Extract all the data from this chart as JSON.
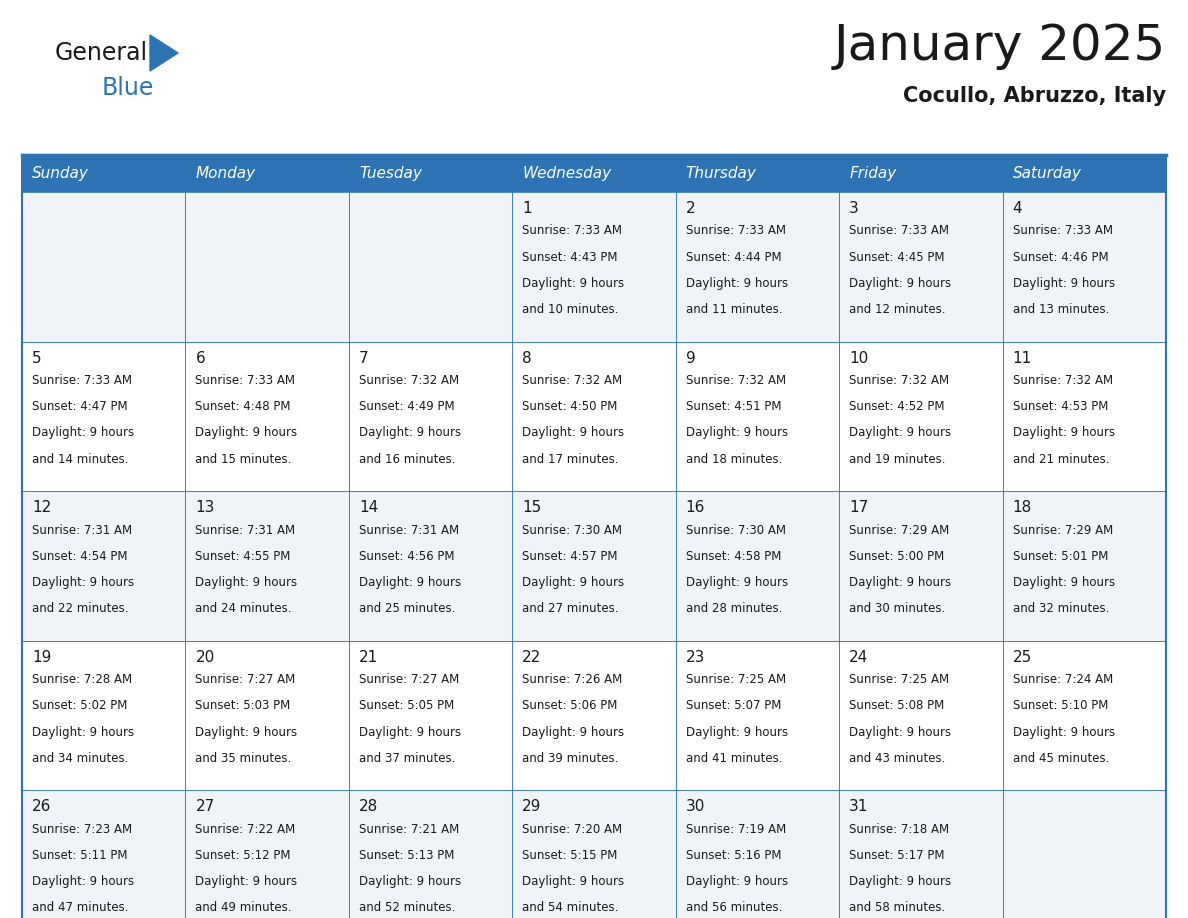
{
  "title": "January 2025",
  "subtitle": "Cocullo, Abruzzo, Italy",
  "header_bg_color": "#2E74B5",
  "header_text_color": "#FFFFFF",
  "cell_bg_color_light": "#F0F4F8",
  "cell_bg_color_white": "#FFFFFF",
  "grid_line_color": "#2E74B5",
  "text_color": "#1a1a1a",
  "day_names": [
    "Sunday",
    "Monday",
    "Tuesday",
    "Wednesday",
    "Thursday",
    "Friday",
    "Saturday"
  ],
  "days": [
    {
      "day": 1,
      "col": 3,
      "row": 0,
      "sunrise": "7:33 AM",
      "sunset": "4:43 PM",
      "daylight_hours": 9,
      "daylight_minutes": 10
    },
    {
      "day": 2,
      "col": 4,
      "row": 0,
      "sunrise": "7:33 AM",
      "sunset": "4:44 PM",
      "daylight_hours": 9,
      "daylight_minutes": 11
    },
    {
      "day": 3,
      "col": 5,
      "row": 0,
      "sunrise": "7:33 AM",
      "sunset": "4:45 PM",
      "daylight_hours": 9,
      "daylight_minutes": 12
    },
    {
      "day": 4,
      "col": 6,
      "row": 0,
      "sunrise": "7:33 AM",
      "sunset": "4:46 PM",
      "daylight_hours": 9,
      "daylight_minutes": 13
    },
    {
      "day": 5,
      "col": 0,
      "row": 1,
      "sunrise": "7:33 AM",
      "sunset": "4:47 PM",
      "daylight_hours": 9,
      "daylight_minutes": 14
    },
    {
      "day": 6,
      "col": 1,
      "row": 1,
      "sunrise": "7:33 AM",
      "sunset": "4:48 PM",
      "daylight_hours": 9,
      "daylight_minutes": 15
    },
    {
      "day": 7,
      "col": 2,
      "row": 1,
      "sunrise": "7:32 AM",
      "sunset": "4:49 PM",
      "daylight_hours": 9,
      "daylight_minutes": 16
    },
    {
      "day": 8,
      "col": 3,
      "row": 1,
      "sunrise": "7:32 AM",
      "sunset": "4:50 PM",
      "daylight_hours": 9,
      "daylight_minutes": 17
    },
    {
      "day": 9,
      "col": 4,
      "row": 1,
      "sunrise": "7:32 AM",
      "sunset": "4:51 PM",
      "daylight_hours": 9,
      "daylight_minutes": 18
    },
    {
      "day": 10,
      "col": 5,
      "row": 1,
      "sunrise": "7:32 AM",
      "sunset": "4:52 PM",
      "daylight_hours": 9,
      "daylight_minutes": 19
    },
    {
      "day": 11,
      "col": 6,
      "row": 1,
      "sunrise": "7:32 AM",
      "sunset": "4:53 PM",
      "daylight_hours": 9,
      "daylight_minutes": 21
    },
    {
      "day": 12,
      "col": 0,
      "row": 2,
      "sunrise": "7:31 AM",
      "sunset": "4:54 PM",
      "daylight_hours": 9,
      "daylight_minutes": 22
    },
    {
      "day": 13,
      "col": 1,
      "row": 2,
      "sunrise": "7:31 AM",
      "sunset": "4:55 PM",
      "daylight_hours": 9,
      "daylight_minutes": 24
    },
    {
      "day": 14,
      "col": 2,
      "row": 2,
      "sunrise": "7:31 AM",
      "sunset": "4:56 PM",
      "daylight_hours": 9,
      "daylight_minutes": 25
    },
    {
      "day": 15,
      "col": 3,
      "row": 2,
      "sunrise": "7:30 AM",
      "sunset": "4:57 PM",
      "daylight_hours": 9,
      "daylight_minutes": 27
    },
    {
      "day": 16,
      "col": 4,
      "row": 2,
      "sunrise": "7:30 AM",
      "sunset": "4:58 PM",
      "daylight_hours": 9,
      "daylight_minutes": 28
    },
    {
      "day": 17,
      "col": 5,
      "row": 2,
      "sunrise": "7:29 AM",
      "sunset": "5:00 PM",
      "daylight_hours": 9,
      "daylight_minutes": 30
    },
    {
      "day": 18,
      "col": 6,
      "row": 2,
      "sunrise": "7:29 AM",
      "sunset": "5:01 PM",
      "daylight_hours": 9,
      "daylight_minutes": 32
    },
    {
      "day": 19,
      "col": 0,
      "row": 3,
      "sunrise": "7:28 AM",
      "sunset": "5:02 PM",
      "daylight_hours": 9,
      "daylight_minutes": 34
    },
    {
      "day": 20,
      "col": 1,
      "row": 3,
      "sunrise": "7:27 AM",
      "sunset": "5:03 PM",
      "daylight_hours": 9,
      "daylight_minutes": 35
    },
    {
      "day": 21,
      "col": 2,
      "row": 3,
      "sunrise": "7:27 AM",
      "sunset": "5:05 PM",
      "daylight_hours": 9,
      "daylight_minutes": 37
    },
    {
      "day": 22,
      "col": 3,
      "row": 3,
      "sunrise": "7:26 AM",
      "sunset": "5:06 PM",
      "daylight_hours": 9,
      "daylight_minutes": 39
    },
    {
      "day": 23,
      "col": 4,
      "row": 3,
      "sunrise": "7:25 AM",
      "sunset": "5:07 PM",
      "daylight_hours": 9,
      "daylight_minutes": 41
    },
    {
      "day": 24,
      "col": 5,
      "row": 3,
      "sunrise": "7:25 AM",
      "sunset": "5:08 PM",
      "daylight_hours": 9,
      "daylight_minutes": 43
    },
    {
      "day": 25,
      "col": 6,
      "row": 3,
      "sunrise": "7:24 AM",
      "sunset": "5:10 PM",
      "daylight_hours": 9,
      "daylight_minutes": 45
    },
    {
      "day": 26,
      "col": 0,
      "row": 4,
      "sunrise": "7:23 AM",
      "sunset": "5:11 PM",
      "daylight_hours": 9,
      "daylight_minutes": 47
    },
    {
      "day": 27,
      "col": 1,
      "row": 4,
      "sunrise": "7:22 AM",
      "sunset": "5:12 PM",
      "daylight_hours": 9,
      "daylight_minutes": 49
    },
    {
      "day": 28,
      "col": 2,
      "row": 4,
      "sunrise": "7:21 AM",
      "sunset": "5:13 PM",
      "daylight_hours": 9,
      "daylight_minutes": 52
    },
    {
      "day": 29,
      "col": 3,
      "row": 4,
      "sunrise": "7:20 AM",
      "sunset": "5:15 PM",
      "daylight_hours": 9,
      "daylight_minutes": 54
    },
    {
      "day": 30,
      "col": 4,
      "row": 4,
      "sunrise": "7:19 AM",
      "sunset": "5:16 PM",
      "daylight_hours": 9,
      "daylight_minutes": 56
    },
    {
      "day": 31,
      "col": 5,
      "row": 4,
      "sunrise": "7:18 AM",
      "sunset": "5:17 PM",
      "daylight_hours": 9,
      "daylight_minutes": 58
    }
  ],
  "num_rows": 5,
  "num_cols": 7,
  "logo_text_general": "General",
  "logo_text_blue": "Blue",
  "logo_color_general": "#1a1a1a",
  "logo_color_blue": "#2E74B5",
  "title_fontsize": 36,
  "subtitle_fontsize": 15,
  "dayname_fontsize": 11,
  "daynum_fontsize": 11,
  "cell_text_fontsize": 8.5
}
